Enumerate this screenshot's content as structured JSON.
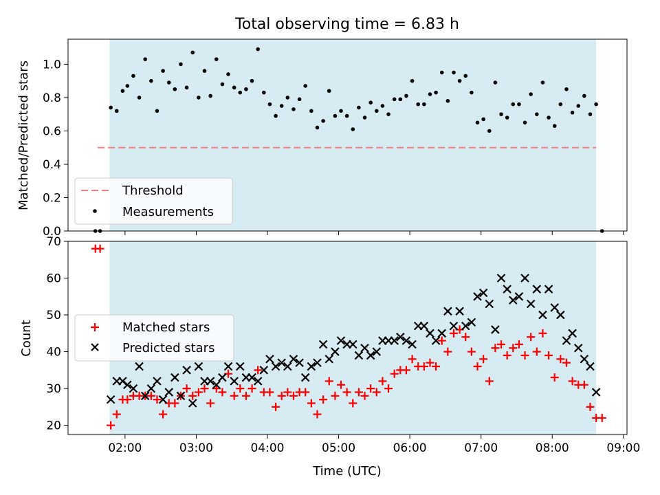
{
  "chart_data": [
    {
      "type": "scatter",
      "title": "Total observing time = 6.83 h",
      "ylabel": "Matched/Predicted stars",
      "ylim": [
        0,
        1.15
      ],
      "yticks": [
        "0.0",
        "0.2",
        "0.4",
        "0.6",
        "0.8",
        "1.0"
      ],
      "grid": false,
      "legend_position": "lower-left",
      "shaded_span": {
        "start": "01:47",
        "end": "08:37",
        "color": "#add8e6"
      },
      "threshold": {
        "name": "Threshold",
        "value": 0.5,
        "x_start": "01:37",
        "x_end": "08:37",
        "color": "#f08080",
        "style": "dashed"
      },
      "series": [
        {
          "name": "Measurements",
          "color": "#000000",
          "marker": "dot",
          "points": [
            [
              "01:35",
              0.0
            ],
            [
              "01:39",
              0.0
            ],
            [
              "01:48",
              0.74
            ],
            [
              "01:53",
              0.72
            ],
            [
              "01:58",
              0.84
            ],
            [
              "02:02",
              0.87
            ],
            [
              "02:07",
              0.93
            ],
            [
              "02:12",
              0.8
            ],
            [
              "02:17",
              1.03
            ],
            [
              "02:22",
              0.9
            ],
            [
              "02:27",
              0.72
            ],
            [
              "02:32",
              0.96
            ],
            [
              "02:37",
              0.89
            ],
            [
              "02:42",
              0.85
            ],
            [
              "02:47",
              1.0
            ],
            [
              "02:52",
              0.86
            ],
            [
              "02:57",
              1.07
            ],
            [
              "03:02",
              0.8
            ],
            [
              "03:07",
              0.96
            ],
            [
              "03:12",
              0.81
            ],
            [
              "03:17",
              1.03
            ],
            [
              "03:22",
              0.88
            ],
            [
              "03:27",
              0.94
            ],
            [
              "03:32",
              0.86
            ],
            [
              "03:37",
              0.83
            ],
            [
              "03:42",
              0.85
            ],
            [
              "03:47",
              0.9
            ],
            [
              "03:52",
              1.09
            ],
            [
              "03:57",
              0.83
            ],
            [
              "04:02",
              0.76
            ],
            [
              "04:07",
              0.69
            ],
            [
              "04:12",
              0.75
            ],
            [
              "04:17",
              0.8
            ],
            [
              "04:22",
              0.73
            ],
            [
              "04:27",
              0.79
            ],
            [
              "04:32",
              0.87
            ],
            [
              "04:37",
              0.72
            ],
            [
              "04:42",
              0.62
            ],
            [
              "04:47",
              0.66
            ],
            [
              "04:52",
              0.84
            ],
            [
              "04:57",
              0.69
            ],
            [
              "05:02",
              0.72
            ],
            [
              "05:07",
              0.69
            ],
            [
              "05:12",
              0.61
            ],
            [
              "05:17",
              0.74
            ],
            [
              "05:22",
              0.68
            ],
            [
              "05:27",
              0.77
            ],
            [
              "05:32",
              0.72
            ],
            [
              "05:37",
              0.75
            ],
            [
              "05:42",
              0.7
            ],
            [
              "05:47",
              0.79
            ],
            [
              "05:52",
              0.79
            ],
            [
              "05:57",
              0.81
            ],
            [
              "06:02",
              0.9
            ],
            [
              "06:07",
              0.76
            ],
            [
              "06:12",
              0.76
            ],
            [
              "06:17",
              0.82
            ],
            [
              "06:22",
              0.83
            ],
            [
              "06:27",
              0.95
            ],
            [
              "06:32",
              0.78
            ],
            [
              "06:37",
              0.95
            ],
            [
              "06:42",
              0.9
            ],
            [
              "06:47",
              0.93
            ],
            [
              "06:52",
              0.83
            ],
            [
              "06:57",
              0.65
            ],
            [
              "07:02",
              0.67
            ],
            [
              "07:07",
              0.6
            ],
            [
              "07:12",
              0.89
            ],
            [
              "07:17",
              0.7
            ],
            [
              "07:22",
              0.68
            ],
            [
              "07:27",
              0.76
            ],
            [
              "07:32",
              0.76
            ],
            [
              "07:37",
              0.65
            ],
            [
              "07:42",
              0.82
            ],
            [
              "07:47",
              0.7
            ],
            [
              "07:52",
              0.89
            ],
            [
              "07:57",
              0.68
            ],
            [
              "08:02",
              0.63
            ],
            [
              "08:07",
              0.76
            ],
            [
              "08:12",
              0.85
            ],
            [
              "08:17",
              0.71
            ],
            [
              "08:22",
              0.75
            ],
            [
              "08:27",
              0.81
            ],
            [
              "08:32",
              0.7
            ],
            [
              "08:37",
              0.76
            ],
            [
              "08:42",
              0.0
            ]
          ]
        }
      ]
    },
    {
      "type": "scatter",
      "xlabel": "Time (UTC)",
      "ylabel": "Count",
      "xlim": [
        "01:12",
        "09:03"
      ],
      "ylim": [
        17.5,
        70
      ],
      "xticks": [
        "02:00",
        "03:00",
        "04:00",
        "05:00",
        "06:00",
        "07:00",
        "08:00",
        "09:00"
      ],
      "yticks": [
        "20",
        "30",
        "40",
        "50",
        "60",
        "70"
      ],
      "grid": false,
      "legend_position": "center-left",
      "shaded_span": {
        "start": "01:47",
        "end": "08:37",
        "color": "#add8e6"
      },
      "series": [
        {
          "name": "Matched stars",
          "color": "#ff0000",
          "marker": "plus",
          "points": [
            [
              "01:35",
              68
            ],
            [
              "01:39",
              68
            ],
            [
              "01:48",
              20
            ],
            [
              "01:53",
              23
            ],
            [
              "01:58",
              27
            ],
            [
              "02:02",
              27
            ],
            [
              "02:07",
              28
            ],
            [
              "02:12",
              28
            ],
            [
              "02:17",
              28
            ],
            [
              "02:22",
              28
            ],
            [
              "02:27",
              27
            ],
            [
              "02:32",
              23
            ],
            [
              "02:37",
              26
            ],
            [
              "02:42",
              26
            ],
            [
              "02:47",
              28
            ],
            [
              "02:52",
              30
            ],
            [
              "02:57",
              28
            ],
            [
              "03:02",
              29
            ],
            [
              "03:07",
              30
            ],
            [
              "03:12",
              26
            ],
            [
              "03:17",
              30
            ],
            [
              "03:22",
              29
            ],
            [
              "03:27",
              34
            ],
            [
              "03:32",
              28
            ],
            [
              "03:37",
              30
            ],
            [
              "03:42",
              28
            ],
            [
              "03:47",
              30
            ],
            [
              "03:52",
              35
            ],
            [
              "03:57",
              29
            ],
            [
              "04:02",
              29
            ],
            [
              "04:07",
              25
            ],
            [
              "04:12",
              28
            ],
            [
              "04:17",
              29
            ],
            [
              "04:22",
              28
            ],
            [
              "04:27",
              29
            ],
            [
              "04:32",
              29
            ],
            [
              "04:37",
              26
            ],
            [
              "04:42",
              23
            ],
            [
              "04:47",
              27
            ],
            [
              "04:52",
              32
            ],
            [
              "04:57",
              28
            ],
            [
              "05:02",
              31
            ],
            [
              "05:07",
              29
            ],
            [
              "05:12",
              26
            ],
            [
              "05:17",
              29
            ],
            [
              "05:22",
              28
            ],
            [
              "05:27",
              30
            ],
            [
              "05:32",
              29
            ],
            [
              "05:37",
              32
            ],
            [
              "05:42",
              30
            ],
            [
              "05:47",
              34
            ],
            [
              "05:52",
              35
            ],
            [
              "05:57",
              35
            ],
            [
              "06:02",
              38
            ],
            [
              "06:07",
              36
            ],
            [
              "06:12",
              36
            ],
            [
              "06:17",
              37
            ],
            [
              "06:22",
              36
            ],
            [
              "06:27",
              43
            ],
            [
              "06:32",
              40
            ],
            [
              "06:37",
              45
            ],
            [
              "06:42",
              46
            ],
            [
              "06:47",
              44
            ],
            [
              "06:52",
              40
            ],
            [
              "06:57",
              36
            ],
            [
              "07:02",
              38
            ],
            [
              "07:07",
              32
            ],
            [
              "07:12",
              41
            ],
            [
              "07:17",
              42
            ],
            [
              "07:22",
              39
            ],
            [
              "07:27",
              41
            ],
            [
              "07:32",
              42
            ],
            [
              "07:37",
              39
            ],
            [
              "07:42",
              44
            ],
            [
              "07:47",
              40
            ],
            [
              "07:52",
              45
            ],
            [
              "07:57",
              39
            ],
            [
              "08:02",
              33
            ],
            [
              "08:07",
              38
            ],
            [
              "08:12",
              37
            ],
            [
              "08:17",
              32
            ],
            [
              "08:22",
              31
            ],
            [
              "08:27",
              31
            ],
            [
              "08:32",
              25
            ],
            [
              "08:37",
              22
            ],
            [
              "08:42",
              22
            ]
          ]
        },
        {
          "name": "Predicted stars",
          "color": "#000000",
          "marker": "x",
          "points": [
            [
              "01:48",
              27
            ],
            [
              "01:53",
              32
            ],
            [
              "01:58",
              32
            ],
            [
              "02:02",
              31
            ],
            [
              "02:07",
              30
            ],
            [
              "02:12",
              36
            ],
            [
              "02:17",
              28
            ],
            [
              "02:22",
              30
            ],
            [
              "02:27",
              32
            ],
            [
              "02:32",
              27
            ],
            [
              "02:37",
              29
            ],
            [
              "02:42",
              33
            ],
            [
              "02:47",
              28
            ],
            [
              "02:52",
              35
            ],
            [
              "02:57",
              26
            ],
            [
              "03:02",
              36
            ],
            [
              "03:07",
              32
            ],
            [
              "03:12",
              32
            ],
            [
              "03:17",
              31
            ],
            [
              "03:22",
              33
            ],
            [
              "03:27",
              36
            ],
            [
              "03:32",
              32
            ],
            [
              "03:37",
              36
            ],
            [
              "03:42",
              33
            ],
            [
              "03:47",
              33
            ],
            [
              "03:52",
              32
            ],
            [
              "03:57",
              35
            ],
            [
              "04:02",
              38
            ],
            [
              "04:07",
              36
            ],
            [
              "04:12",
              37
            ],
            [
              "04:17",
              36
            ],
            [
              "04:22",
              38
            ],
            [
              "04:27",
              37
            ],
            [
              "04:32",
              33
            ],
            [
              "04:37",
              36
            ],
            [
              "04:42",
              37
            ],
            [
              "04:47",
              42
            ],
            [
              "04:52",
              38
            ],
            [
              "04:57",
              40
            ],
            [
              "05:02",
              43
            ],
            [
              "05:07",
              42
            ],
            [
              "05:12",
              42
            ],
            [
              "05:17",
              39
            ],
            [
              "05:22",
              41
            ],
            [
              "05:27",
              39
            ],
            [
              "05:32",
              40
            ],
            [
              "05:37",
              43
            ],
            [
              "05:42",
              43
            ],
            [
              "05:47",
              43
            ],
            [
              "05:52",
              44
            ],
            [
              "05:57",
              43
            ],
            [
              "06:02",
              42
            ],
            [
              "06:07",
              47
            ],
            [
              "06:12",
              47
            ],
            [
              "06:17",
              45
            ],
            [
              "06:22",
              43
            ],
            [
              "06:27",
              45
            ],
            [
              "06:32",
              51
            ],
            [
              "06:37",
              47
            ],
            [
              "06:42",
              51
            ],
            [
              "06:47",
              47
            ],
            [
              "06:52",
              48
            ],
            [
              "06:57",
              55
            ],
            [
              "07:02",
              56
            ],
            [
              "07:07",
              53
            ],
            [
              "07:12",
              46
            ],
            [
              "07:17",
              60
            ],
            [
              "07:22",
              57
            ],
            [
              "07:27",
              54
            ],
            [
              "07:32",
              55
            ],
            [
              "07:37",
              60
            ],
            [
              "07:42",
              53
            ],
            [
              "07:47",
              57
            ],
            [
              "07:52",
              50
            ],
            [
              "07:57",
              57
            ],
            [
              "08:02",
              52
            ],
            [
              "08:07",
              50
            ],
            [
              "08:12",
              43
            ],
            [
              "08:17",
              45
            ],
            [
              "08:22",
              41
            ],
            [
              "08:27",
              38
            ],
            [
              "08:32",
              36
            ],
            [
              "08:37",
              29
            ]
          ]
        }
      ]
    }
  ]
}
